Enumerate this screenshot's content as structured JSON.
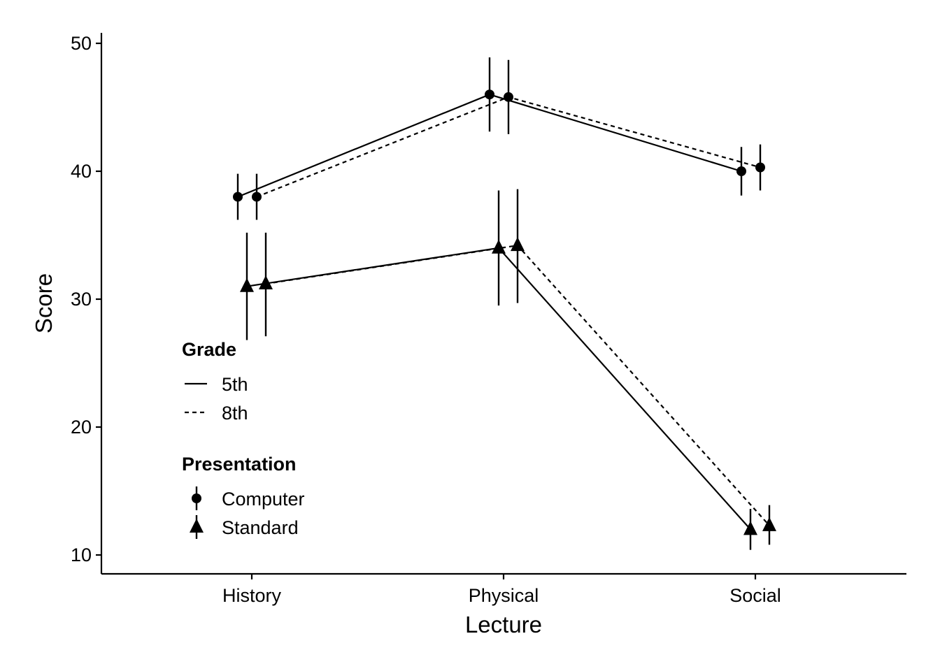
{
  "chart_data": {
    "type": "line",
    "xlabel": "Lecture",
    "ylabel": "Score",
    "categories": [
      "History",
      "Physical",
      "Social"
    ],
    "ylim": [
      8.5,
      51
    ],
    "yticks": [
      10,
      20,
      30,
      40,
      50
    ],
    "grid": false,
    "legend_placement": "bottom-left",
    "series": [
      {
        "grade": "5th",
        "presentation": "Computer",
        "values": [
          38.0,
          46.0,
          40.0
        ],
        "lower": [
          36.2,
          43.1,
          38.1
        ],
        "upper": [
          39.8,
          48.9,
          41.9
        ]
      },
      {
        "grade": "8th",
        "presentation": "Computer",
        "values": [
          38.0,
          45.8,
          40.3
        ],
        "lower": [
          36.2,
          42.9,
          38.5
        ],
        "upper": [
          39.8,
          48.7,
          42.1
        ]
      },
      {
        "grade": "5th",
        "presentation": "Standard",
        "values": [
          31.0,
          34.0,
          12.0
        ],
        "lower": [
          26.8,
          29.5,
          10.4
        ],
        "upper": [
          35.2,
          38.5,
          13.6
        ]
      },
      {
        "grade": "8th",
        "presentation": "Standard",
        "values": [
          31.2,
          34.2,
          12.3
        ],
        "lower": [
          27.1,
          29.7,
          10.8
        ],
        "upper": [
          35.2,
          38.6,
          13.9
        ]
      }
    ],
    "legend": {
      "grade_title": "Grade",
      "grade_items": [
        {
          "label": "5th",
          "linestyle": "solid"
        },
        {
          "label": "8th",
          "linestyle": "dashed"
        }
      ],
      "presentation_title": "Presentation",
      "presentation_items": [
        {
          "label": "Computer",
          "shape": "circle"
        },
        {
          "label": "Standard",
          "shape": "triangle"
        }
      ]
    }
  }
}
